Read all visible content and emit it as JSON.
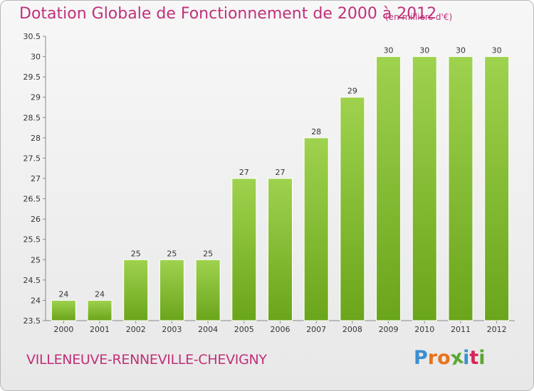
{
  "chart_data": {
    "type": "bar",
    "title": "Dotation Globale de Fonctionnement de 2000 à 2012",
    "subtitle": "(en milliers d'€)",
    "categories": [
      "2000",
      "2001",
      "2002",
      "2003",
      "2004",
      "2005",
      "2006",
      "2007",
      "2008",
      "2009",
      "2010",
      "2011",
      "2012"
    ],
    "values": [
      24,
      24,
      25,
      25,
      25,
      27,
      27,
      28,
      29,
      30,
      30,
      30,
      30
    ],
    "ylim": [
      23.5,
      30.5
    ],
    "yticks": [
      "23.5",
      "24",
      "24.5",
      "25",
      "25.5",
      "26",
      "26.5",
      "27",
      "27.5",
      "28",
      "28.5",
      "29",
      "29.5",
      "30",
      "30.5"
    ],
    "xlabel": "",
    "ylabel": "",
    "grid": false,
    "bar_color": "#8cc63f"
  },
  "footer": {
    "commune": "VILLENEUVE-RENNEVILLE-CHEVIGNY"
  },
  "logo": {
    "letters": [
      {
        "char": "P",
        "color": "#3b8fd0"
      },
      {
        "char": "r",
        "color": "#e8731c"
      },
      {
        "char": "o",
        "color": "#e8731c"
      },
      {
        "char": "x",
        "color": "#5aa832"
      },
      {
        "char": "i",
        "color": "#3b8fd0"
      },
      {
        "char": "t",
        "color": "#d8245a"
      },
      {
        "char": "i",
        "color": "#5aa832"
      }
    ]
  }
}
